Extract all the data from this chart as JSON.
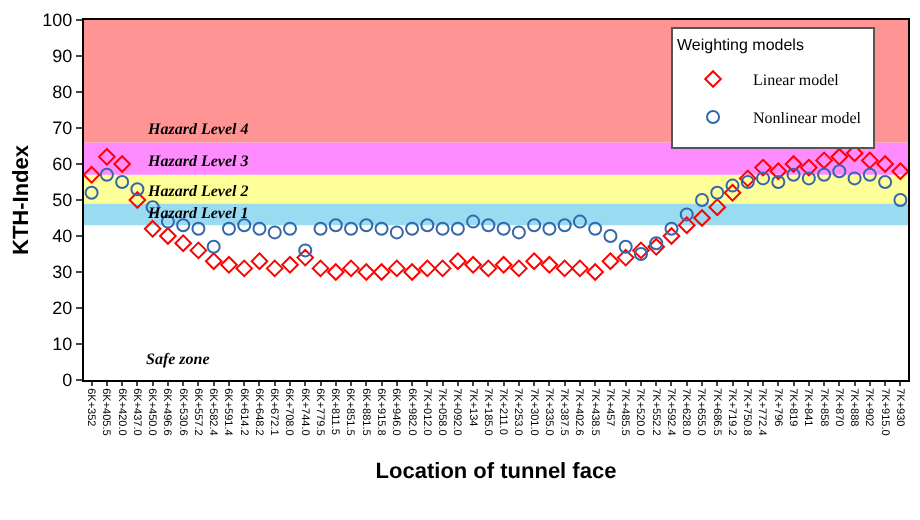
{
  "chart_data": {
    "type": "scatter",
    "xlabel": "Location of tunnel face",
    "ylabel": "KTH-Index",
    "categories": [
      "6K+352",
      "6K+405.5",
      "6K+420.0",
      "6K+437.0",
      "6K+450.0",
      "6K+496.6",
      "6K+530.6",
      "6K+557.2",
      "6K+582.4",
      "6K+591.4",
      "6K+614.2",
      "6K+648.2",
      "6K+672.1",
      "6K+708.0",
      "6K+744.0",
      "6K+779.5",
      "6K+811.5",
      "6K+851.5",
      "6K+881.5",
      "6K+915.8",
      "6K+946.0",
      "6K+982.0",
      "7K+012.0",
      "7K+058.0",
      "7K+092.0",
      "7K+134",
      "7K+185.0",
      "7K+211.0",
      "7K+253.0",
      "7K+301.0",
      "7K+335.0",
      "7K+387.5",
      "7K+402.6",
      "7K+438.5",
      "7K+457",
      "7K+485.5",
      "7K+520.0",
      "7K+552.2",
      "7K+592.4",
      "7K+628.0",
      "7K+655.0",
      "7K+686.5",
      "7K+719.2",
      "7K+750.8",
      "7K+772.4",
      "7K+796",
      "7K+819",
      "7K+841",
      "7K+858",
      "7K+870",
      "7K+888",
      "7K+902",
      "7K+915.0",
      "7K+930"
    ],
    "ylim": [
      0,
      100
    ],
    "yticks": [
      0,
      10,
      20,
      30,
      40,
      50,
      60,
      70,
      80,
      90,
      100
    ],
    "grid": false,
    "legend": "top right",
    "legend_title": "Weighting models",
    "annotations": [
      "Safe zone"
    ],
    "series": [
      {
        "name": "Linear model",
        "color": "#ff0000",
        "marker": "diamond",
        "values": [
          57,
          62,
          60,
          50,
          42,
          40,
          38,
          36,
          33,
          32,
          31,
          33,
          31,
          32,
          34,
          31,
          30,
          31,
          30,
          30,
          31,
          30,
          31,
          31,
          33,
          32,
          31,
          32,
          31,
          33,
          32,
          31,
          31,
          30,
          33,
          34,
          36,
          37,
          40,
          43,
          45,
          48,
          52,
          56,
          59,
          58,
          60,
          59,
          61,
          62,
          63,
          61,
          60,
          58
        ]
      },
      {
        "name": "Nonlinear model",
        "color": "#3366aa",
        "marker": "circle",
        "values": [
          52,
          57,
          55,
          53,
          48,
          44,
          43,
          42,
          37,
          42,
          43,
          42,
          41,
          42,
          36,
          42,
          43,
          42,
          43,
          42,
          41,
          42,
          43,
          42,
          42,
          44,
          43,
          42,
          41,
          43,
          42,
          43,
          44,
          42,
          40,
          37,
          35,
          38,
          42,
          46,
          50,
          52,
          54,
          55,
          56,
          55,
          57,
          56,
          57,
          58,
          56,
          57,
          55,
          50
        ]
      }
    ],
    "bands": [
      {
        "axis": "y",
        "from": 43,
        "to": 49,
        "label": "Hazard Level 1",
        "color": "#99dcf2"
      },
      {
        "axis": "y",
        "from": 49,
        "to": 57,
        "label": "Hazard Level 2",
        "color": "#ffff99"
      },
      {
        "axis": "y",
        "from": 57,
        "to": 66,
        "label": "Hazard Level 3",
        "color": "#ff8cff"
      },
      {
        "axis": "y",
        "from": 66,
        "to": 100,
        "label": "Hazard Level 4",
        "color": "#ff9494"
      }
    ]
  }
}
